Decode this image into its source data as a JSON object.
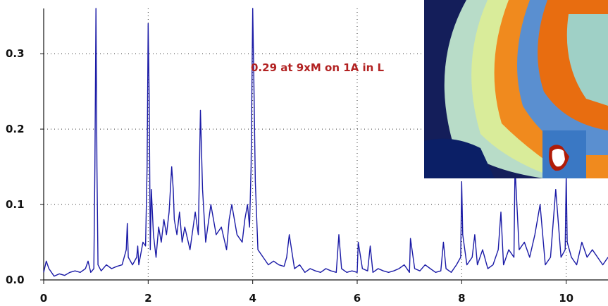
{
  "chart_data": {
    "type": "line",
    "title": "",
    "xlabel": "",
    "ylabel": "",
    "xlim": [
      0,
      10.8
    ],
    "ylim": [
      0,
      0.36
    ],
    "grid": true,
    "x_ticks": [
      "0",
      "2",
      "4",
      "6",
      "8",
      "10"
    ],
    "y_ticks": [
      "0.0",
      "0.1",
      "0.2",
      "0.3"
    ],
    "annotation": "0.29 at 9xM on 1A in L",
    "line_color": "#1a1aa6",
    "annotation_color": "#b22222",
    "series": [
      {
        "x": [
          0.0,
          0.05,
          0.1,
          0.2,
          0.3,
          0.4,
          0.5,
          0.6,
          0.7,
          0.8,
          0.85,
          0.9,
          0.96,
          0.98,
          1.0,
          1.02,
          1.04,
          1.1,
          1.2,
          1.3,
          1.4,
          1.5,
          1.58,
          1.6,
          1.62,
          1.7,
          1.78,
          1.8,
          1.82,
          1.9,
          1.95,
          1.98,
          2.0,
          2.02,
          2.04,
          2.06,
          2.1,
          2.15,
          2.2,
          2.25,
          2.3,
          2.35,
          2.4,
          2.45,
          2.48,
          2.5,
          2.55,
          2.6,
          2.65,
          2.7,
          2.8,
          2.9,
          2.96,
          3.0,
          3.04,
          3.1,
          3.2,
          3.3,
          3.4,
          3.5,
          3.55,
          3.6,
          3.7,
          3.8,
          3.85,
          3.9,
          3.94,
          3.97,
          4.0,
          4.02,
          4.05,
          4.1,
          4.2,
          4.3,
          4.4,
          4.5,
          4.6,
          4.65,
          4.7,
          4.8,
          4.9,
          5.0,
          5.1,
          5.2,
          5.3,
          5.4,
          5.5,
          5.6,
          5.65,
          5.7,
          5.8,
          5.9,
          6.0,
          6.02,
          6.1,
          6.2,
          6.25,
          6.3,
          6.4,
          6.5,
          6.6,
          6.7,
          6.8,
          6.9,
          7.0,
          7.02,
          7.1,
          7.2,
          7.3,
          7.4,
          7.5,
          7.6,
          7.65,
          7.7,
          7.8,
          7.9,
          7.98,
          8.0,
          8.02,
          8.1,
          8.2,
          8.25,
          8.3,
          8.4,
          8.5,
          8.6,
          8.7,
          8.75,
          8.8,
          8.9,
          9.0,
          9.02,
          9.1,
          9.2,
          9.3,
          9.4,
          9.5,
          9.6,
          9.7,
          9.8,
          9.9,
          9.98,
          10.0,
          10.02,
          10.1,
          10.2,
          10.3,
          10.4,
          10.5,
          10.6,
          10.7,
          10.8
        ],
        "y": [
          0.01,
          0.025,
          0.015,
          0.005,
          0.008,
          0.006,
          0.01,
          0.012,
          0.01,
          0.015,
          0.025,
          0.01,
          0.015,
          0.15,
          0.36,
          0.15,
          0.02,
          0.012,
          0.02,
          0.015,
          0.018,
          0.02,
          0.04,
          0.075,
          0.03,
          0.02,
          0.03,
          0.045,
          0.02,
          0.05,
          0.045,
          0.15,
          0.34,
          0.24,
          0.04,
          0.12,
          0.06,
          0.03,
          0.07,
          0.05,
          0.08,
          0.06,
          0.09,
          0.15,
          0.12,
          0.08,
          0.06,
          0.09,
          0.05,
          0.07,
          0.04,
          0.09,
          0.06,
          0.225,
          0.12,
          0.05,
          0.1,
          0.06,
          0.07,
          0.04,
          0.08,
          0.1,
          0.06,
          0.05,
          0.08,
          0.1,
          0.07,
          0.15,
          0.36,
          0.28,
          0.13,
          0.04,
          0.03,
          0.02,
          0.025,
          0.02,
          0.018,
          0.03,
          0.06,
          0.015,
          0.02,
          0.01,
          0.015,
          0.012,
          0.01,
          0.015,
          0.012,
          0.01,
          0.06,
          0.015,
          0.01,
          0.012,
          0.01,
          0.05,
          0.015,
          0.012,
          0.045,
          0.01,
          0.015,
          0.012,
          0.01,
          0.012,
          0.015,
          0.02,
          0.01,
          0.055,
          0.015,
          0.012,
          0.02,
          0.015,
          0.01,
          0.012,
          0.05,
          0.015,
          0.01,
          0.02,
          0.03,
          0.13,
          0.06,
          0.02,
          0.03,
          0.06,
          0.02,
          0.04,
          0.015,
          0.02,
          0.04,
          0.09,
          0.02,
          0.04,
          0.03,
          0.15,
          0.04,
          0.05,
          0.03,
          0.06,
          0.1,
          0.02,
          0.03,
          0.12,
          0.03,
          0.04,
          0.14,
          0.05,
          0.03,
          0.02,
          0.05,
          0.03,
          0.04,
          0.03,
          0.02,
          0.03
        ]
      }
    ]
  },
  "overlay": {
    "icon": "thermal-image-inset"
  }
}
